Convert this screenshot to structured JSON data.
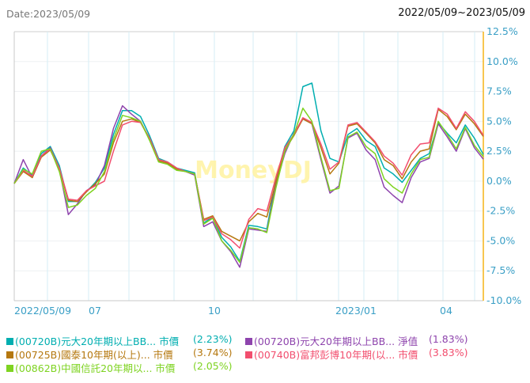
{
  "header": {
    "date_label": "Date:2023/05/09",
    "range": "2022/05/09~2023/05/09"
  },
  "watermark": "MoneyDJ",
  "chart_data": {
    "type": "line",
    "x_range": [
      "2022/05/09",
      "2023/05/09"
    ],
    "x_tick_labels": [
      "2022/05/09",
      "07",
      "10",
      "2023/01",
      "04"
    ],
    "y_tick_labels": [
      "12.5%",
      "10.0%",
      "7.5%",
      "5.0%",
      "2.5%",
      "0.0%",
      "-2.5%",
      "-5.0%",
      "-7.5%",
      "-10.0%"
    ],
    "ylim": [
      -10,
      12.5
    ],
    "y_unit": "%",
    "grid": true,
    "legend_placement": "bottom",
    "series": [
      {
        "name": "(00720B)元大20年期以上BB...",
        "kind": "市價",
        "last": "(2.23%)",
        "color": "#00aeb0",
        "values": [
          -0.2,
          1.1,
          0.5,
          2.3,
          2.9,
          1.3,
          -1.7,
          -1.7,
          -0.9,
          -0.1,
          1.1,
          3.9,
          5.9,
          5.9,
          5.4,
          3.8,
          1.9,
          1.6,
          1.1,
          0.9,
          0.7,
          -3.5,
          -3.0,
          -4.7,
          -5.5,
          -6.7,
          -3.7,
          -3.8,
          -4.0,
          0.1,
          2.9,
          4.2,
          7.9,
          8.2,
          4.2,
          1.9,
          1.6,
          3.9,
          4.4,
          3.4,
          2.9,
          1.1,
          0.6,
          -0.1,
          0.9,
          1.9,
          2.3,
          4.9,
          4.0,
          3.2,
          4.7,
          3.6,
          2.23
        ]
      },
      {
        "name": "(00720B)元大20年期以上BB...",
        "kind": "淨值",
        "last": "(1.83%)",
        "color": "#8e44ad",
        "values": [
          -0.2,
          1.8,
          0.3,
          2.1,
          2.8,
          1.0,
          -2.8,
          -1.9,
          -0.8,
          -0.3,
          1.3,
          4.4,
          6.3,
          5.6,
          5.0,
          3.5,
          1.7,
          1.5,
          1.0,
          0.8,
          0.5,
          -3.8,
          -3.4,
          -5.0,
          -5.9,
          -7.2,
          -4.0,
          -4.1,
          -4.2,
          -0.3,
          2.3,
          4.0,
          5.2,
          4.8,
          1.8,
          -1.0,
          -0.4,
          3.6,
          4.0,
          2.6,
          1.8,
          -0.5,
          -1.2,
          -1.8,
          0.3,
          1.6,
          1.9,
          4.8,
          3.7,
          2.5,
          4.4,
          2.8,
          1.83
        ]
      },
      {
        "name": "(00725B)國泰10年期(以上)...",
        "kind": "市價",
        "last": "(3.74%)",
        "color": "#b5780f",
        "values": [
          -0.2,
          0.8,
          0.3,
          2.0,
          2.6,
          1.0,
          -1.6,
          -1.7,
          -0.9,
          -0.2,
          0.6,
          3.2,
          5.0,
          5.2,
          4.9,
          3.5,
          1.7,
          1.5,
          1.0,
          0.8,
          0.6,
          -3.2,
          -2.9,
          -4.2,
          -4.6,
          -5.0,
          -3.4,
          -2.7,
          -3.0,
          -0.1,
          2.6,
          3.8,
          5.2,
          4.8,
          2.8,
          0.6,
          1.5,
          4.6,
          4.8,
          4.0,
          3.2,
          1.8,
          1.3,
          0.2,
          1.6,
          2.5,
          2.7,
          6.0,
          5.4,
          4.3,
          5.6,
          4.8,
          3.74
        ]
      },
      {
        "name": "(00740B)富邦彭博10年期(以...",
        "kind": "市價",
        "last": "(3.83%)",
        "color": "#f24e6e",
        "values": [
          -0.2,
          0.9,
          0.4,
          2.1,
          2.7,
          1.1,
          -1.5,
          -1.6,
          -0.8,
          -0.4,
          0.0,
          2.5,
          4.7,
          5.0,
          4.9,
          3.6,
          1.8,
          1.6,
          1.1,
          0.8,
          0.6,
          -3.3,
          -3.0,
          -4.4,
          -4.9,
          -5.6,
          -3.2,
          -2.3,
          -2.5,
          0.3,
          2.8,
          3.9,
          5.3,
          4.9,
          3.1,
          1.0,
          1.6,
          4.7,
          4.9,
          4.1,
          3.3,
          2.1,
          1.5,
          0.5,
          2.2,
          3.1,
          3.2,
          6.1,
          5.6,
          4.4,
          5.8,
          5.0,
          3.83
        ]
      },
      {
        "name": "(00862B)中國信託20年期以...",
        "kind": "市價",
        "last": "(2.05%)",
        "color": "#7ed321",
        "values": [
          -0.2,
          1.0,
          0.6,
          2.5,
          2.7,
          0.8,
          -2.2,
          -2.0,
          -1.2,
          -0.6,
          0.8,
          3.5,
          5.5,
          5.3,
          5.0,
          3.4,
          1.6,
          1.4,
          0.9,
          0.8,
          0.6,
          -3.6,
          -3.1,
          -5.0,
          -5.8,
          -6.8,
          -3.9,
          -4.0,
          -4.3,
          -0.6,
          2.5,
          3.9,
          6.1,
          5.0,
          2.0,
          -0.8,
          -0.6,
          3.7,
          4.1,
          2.9,
          2.3,
          0.2,
          -0.5,
          -1.0,
          0.6,
          1.8,
          2.0,
          5.0,
          3.9,
          2.7,
          4.5,
          3.0,
          2.05
        ]
      }
    ]
  }
}
